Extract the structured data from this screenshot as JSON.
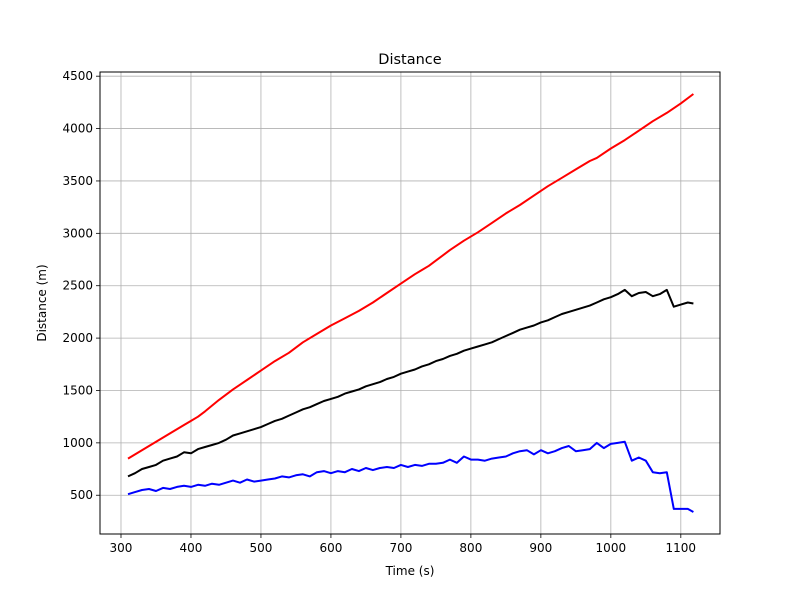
{
  "chart_data": {
    "type": "line",
    "title": "Distance",
    "xlabel": "Time (s)",
    "ylabel": "Distance (m)",
    "xlim": [
      270,
      1156
    ],
    "ylim": [
      130,
      4540
    ],
    "xticks": [
      300,
      400,
      500,
      600,
      700,
      800,
      900,
      1000,
      1100
    ],
    "yticks": [
      500,
      1000,
      1500,
      2000,
      2500,
      3000,
      3500,
      4000,
      4500
    ],
    "grid": true,
    "legend": "none",
    "series": [
      {
        "color": "#ff0000",
        "x": [
          310,
          340,
          370,
          390,
          400,
          410,
          420,
          440,
          460,
          480,
          500,
          520,
          540,
          560,
          580,
          600,
          620,
          640,
          660,
          680,
          700,
          720,
          730,
          740,
          750,
          770,
          790,
          810,
          830,
          850,
          870,
          890,
          910,
          930,
          950,
          970,
          980,
          1000,
          1020,
          1040,
          1060,
          1080,
          1100,
          1118
        ],
        "y": [
          850,
          970,
          1090,
          1170,
          1210,
          1250,
          1300,
          1410,
          1510,
          1600,
          1690,
          1780,
          1860,
          1960,
          2040,
          2120,
          2190,
          2260,
          2340,
          2430,
          2520,
          2610,
          2650,
          2690,
          2740,
          2840,
          2930,
          3010,
          3100,
          3190,
          3270,
          3360,
          3450,
          3530,
          3610,
          3690,
          3720,
          3810,
          3890,
          3980,
          4070,
          4150,
          4240,
          4330
        ]
      },
      {
        "color": "#000000",
        "x": [
          310,
          320,
          330,
          340,
          350,
          360,
          370,
          380,
          390,
          400,
          410,
          420,
          430,
          440,
          450,
          460,
          470,
          480,
          490,
          500,
          510,
          520,
          530,
          540,
          550,
          560,
          570,
          580,
          590,
          600,
          610,
          620,
          630,
          640,
          650,
          660,
          670,
          680,
          690,
          700,
          710,
          720,
          730,
          740,
          750,
          760,
          770,
          780,
          790,
          800,
          810,
          820,
          830,
          840,
          850,
          860,
          870,
          880,
          890,
          900,
          910,
          920,
          930,
          940,
          950,
          960,
          970,
          980,
          990,
          1000,
          1010,
          1020,
          1030,
          1040,
          1050,
          1060,
          1070,
          1080,
          1090,
          1100,
          1110,
          1118
        ],
        "y": [
          680,
          710,
          750,
          770,
          790,
          830,
          850,
          870,
          910,
          900,
          940,
          960,
          980,
          1000,
          1030,
          1070,
          1090,
          1110,
          1130,
          1150,
          1180,
          1210,
          1230,
          1260,
          1290,
          1320,
          1340,
          1370,
          1400,
          1420,
          1440,
          1470,
          1490,
          1510,
          1540,
          1560,
          1580,
          1610,
          1630,
          1660,
          1680,
          1700,
          1730,
          1750,
          1780,
          1800,
          1830,
          1850,
          1880,
          1900,
          1920,
          1940,
          1960,
          1990,
          2020,
          2050,
          2080,
          2100,
          2120,
          2150,
          2170,
          2200,
          2230,
          2250,
          2270,
          2290,
          2310,
          2340,
          2370,
          2390,
          2420,
          2460,
          2400,
          2430,
          2440,
          2400,
          2420,
          2460,
          2300,
          2320,
          2340,
          2330
        ]
      },
      {
        "color": "#0000ff",
        "x": [
          310,
          320,
          330,
          340,
          350,
          360,
          370,
          380,
          390,
          400,
          410,
          420,
          430,
          440,
          450,
          460,
          470,
          480,
          490,
          500,
          510,
          520,
          530,
          540,
          550,
          560,
          570,
          580,
          590,
          600,
          610,
          620,
          630,
          640,
          650,
          660,
          670,
          680,
          690,
          700,
          710,
          720,
          730,
          740,
          750,
          760,
          770,
          780,
          790,
          800,
          810,
          820,
          830,
          840,
          850,
          860,
          870,
          880,
          890,
          900,
          910,
          920,
          930,
          940,
          950,
          960,
          970,
          980,
          990,
          1000,
          1010,
          1020,
          1030,
          1040,
          1050,
          1060,
          1070,
          1080,
          1090,
          1100,
          1110,
          1118
        ],
        "y": [
          510,
          530,
          550,
          560,
          540,
          570,
          560,
          580,
          590,
          580,
          600,
          590,
          610,
          600,
          620,
          640,
          620,
          650,
          630,
          640,
          650,
          660,
          680,
          670,
          690,
          700,
          680,
          720,
          730,
          710,
          730,
          720,
          750,
          730,
          760,
          740,
          760,
          770,
          760,
          790,
          770,
          790,
          780,
          800,
          800,
          810,
          840,
          810,
          870,
          840,
          840,
          830,
          850,
          860,
          870,
          900,
          920,
          930,
          890,
          930,
          900,
          920,
          950,
          970,
          920,
          930,
          940,
          1000,
          950,
          990,
          1000,
          1010,
          830,
          860,
          830,
          720,
          710,
          720,
          370,
          370,
          370,
          340
        ]
      }
    ]
  }
}
